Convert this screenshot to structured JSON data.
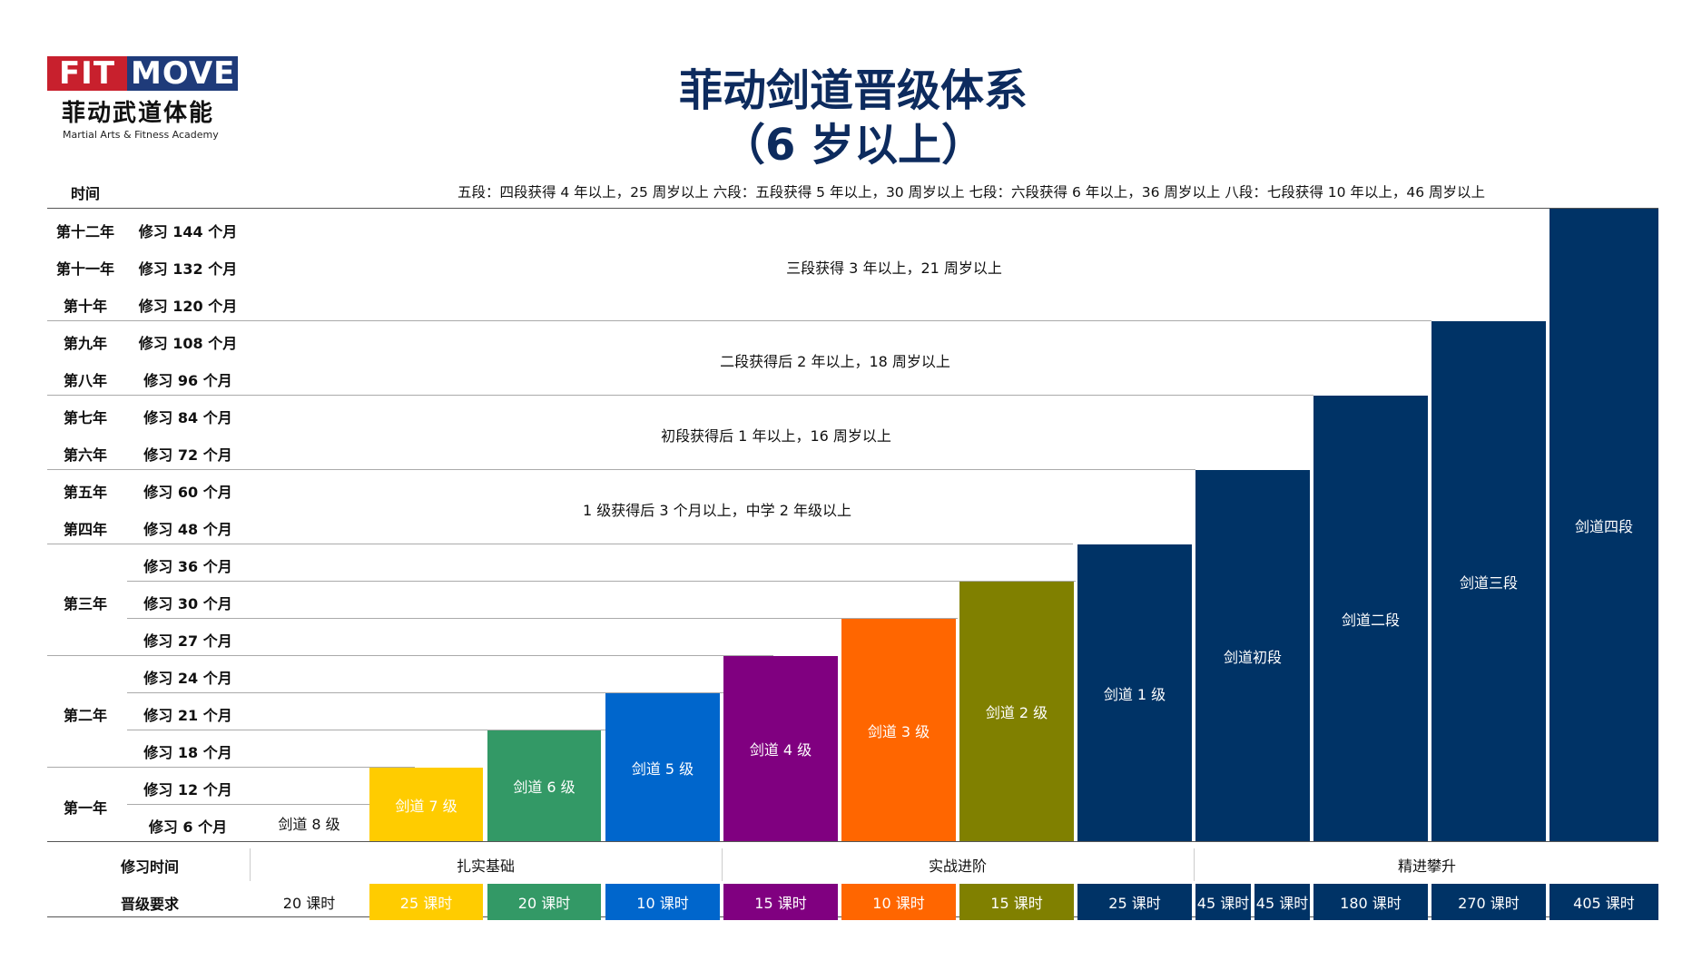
{
  "logo": {
    "brand_left": "FIT",
    "brand_right": "MOVE",
    "name_cn": "菲动武道体能",
    "name_en": "Martial Arts & Fitness Academy"
  },
  "title": {
    "line1": "菲动剑道晋级体系",
    "line2": "（6 岁以上）"
  },
  "header_row": {
    "label": "时间",
    "text": "五段：四段获得 4 年以上，25 周岁以上  六段：五段获得 5 年以上，30 周岁以上  七段：六段获得 6 年以上，36 周岁以上  八段：七段获得 10 年以上，46 周岁以上"
  },
  "years": [
    "第十二年",
    "第十一年",
    "第十年",
    "第九年",
    "第八年",
    "第七年",
    "第六年",
    "第五年",
    "第四年",
    "第三年",
    "第二年",
    "第一年"
  ],
  "months": [
    "修习 144 个月",
    "修习 132 个月",
    "修习 120 个月",
    "修习 108 个月",
    "修习 96 个月",
    "修习 84 个月",
    "修习 72 个月",
    "修习 60 个月",
    "修习 48 个月",
    "修习 36 个月",
    "修习 30 个月",
    "修习 27 个月",
    "修习 24 个月",
    "修习 21 个月",
    "修习 18 个月",
    "修习 12 个月",
    "修习 6 个月"
  ],
  "requirements": [
    "三段获得 3 年以上，21 周岁以上",
    "二段获得后 2 年以上，18 周岁以上",
    "初段获得后 1 年以上，16 周岁以上",
    "1 级获得后 3 个月以上，中学 2 年级以上"
  ],
  "grades": [
    "剑道 8 级",
    "剑道 7 级",
    "剑道 6 级",
    "剑道 5 级",
    "剑道 4 级",
    "剑道 3 级",
    "剑道 2 级",
    "剑道 1 级",
    "剑道初段",
    "剑道二段",
    "剑道三段",
    "剑道四段"
  ],
  "grade_colors": [
    "#ffffff",
    "#ffcc00",
    "#339966",
    "#0066cc",
    "#800080",
    "#ff6600",
    "#808000",
    "#003366",
    "#003366",
    "#003366",
    "#003366",
    "#003366"
  ],
  "bottom": {
    "study_time_label": "修习时间",
    "requirement_label": "晋级要求",
    "stages": [
      "扎实基础",
      "实战进阶",
      "精进攀升"
    ],
    "hours": [
      "20 课时",
      "25 课时",
      "20 课时",
      "10 课时",
      "15 课时",
      "10 课时",
      "15 课时",
      "25 课时",
      "45 课时",
      "45 课时",
      "180 课时",
      "270 课时",
      "405 课时"
    ]
  }
}
